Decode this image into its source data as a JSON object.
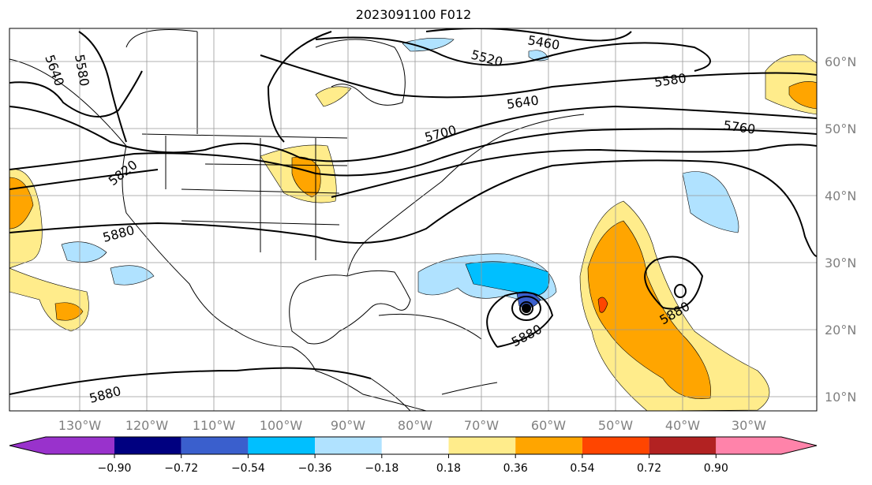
{
  "title": "2023091100 F012",
  "map": {
    "lon_labels": [
      "130°W",
      "120°W",
      "110°W",
      "100°W",
      "90°W",
      "80°W",
      "70°W",
      "60°W",
      "50°W",
      "40°W",
      "30°W"
    ],
    "lat_labels": [
      "60°N",
      "50°N",
      "40°N",
      "30°N",
      "20°N",
      "10°N"
    ],
    "contour_labels": [
      "5460",
      "5520",
      "5580",
      "5640",
      "5700",
      "5760",
      "5820",
      "5880",
      "5880",
      "5880",
      "5880",
      "5580",
      "5640"
    ]
  },
  "colorbar": {
    "ticks": [
      "−0.90",
      "−0.72",
      "−0.54",
      "−0.36",
      "−0.18",
      "0.18",
      "0.36",
      "0.54",
      "0.72",
      "0.90"
    ],
    "colors": [
      "#9932cc",
      "#000080",
      "#3a5fcd",
      "#00bfff",
      "#b0e2ff",
      "#ffffff",
      "#ffec8b",
      "#ffa500",
      "#ff4500",
      "#b22222",
      "#ff83aa"
    ]
  }
}
